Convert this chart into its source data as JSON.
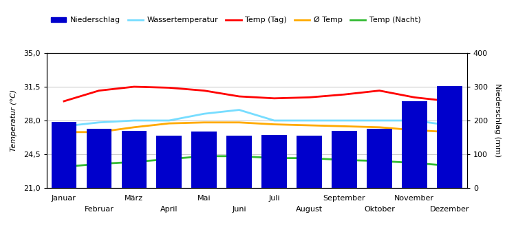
{
  "months": [
    "Januar",
    "Februar",
    "März",
    "April",
    "Mai",
    "Juni",
    "Juli",
    "August",
    "September",
    "Oktober",
    "November",
    "Dezember"
  ],
  "niederschlag": [
    196,
    175,
    170,
    155,
    168,
    155,
    158,
    155,
    170,
    175,
    257,
    303
  ],
  "temp_tag": [
    30.0,
    31.1,
    31.5,
    31.4,
    31.1,
    30.5,
    30.3,
    30.4,
    30.7,
    31.1,
    30.4,
    30.0
  ],
  "temp_nacht": [
    23.2,
    23.5,
    23.7,
    24.0,
    24.3,
    24.3,
    24.1,
    24.1,
    23.9,
    23.8,
    23.6,
    23.3
  ],
  "temp_avg": [
    26.8,
    26.8,
    27.3,
    27.7,
    27.8,
    27.8,
    27.6,
    27.5,
    27.4,
    27.3,
    27.0,
    26.8
  ],
  "wasser_temp": [
    27.4,
    27.8,
    28.0,
    28.0,
    28.7,
    29.1,
    28.0,
    28.0,
    28.0,
    28.0,
    28.0,
    27.5
  ],
  "temp_ylim": [
    21.0,
    35.0
  ],
  "temp_yticks": [
    21.0,
    24.5,
    28.0,
    31.5,
    35.0
  ],
  "precip_ylim": [
    0,
    400
  ],
  "precip_yticks": [
    0,
    100,
    200,
    300,
    400
  ],
  "bar_color": "#0000cc",
  "line_tag_color": "#ff0000",
  "line_nacht_color": "#33bb33",
  "line_avg_color": "#ffaa00",
  "line_wasser_color": "#77ddff",
  "ylabel_left": "Temperatur (°C)",
  "ylabel_right": "Niederschlag (mm)",
  "legend_labels": [
    "Niederschlag",
    "Wassertemperatur",
    "Temp (Tag)",
    "Ø Temp",
    "Temp (Nacht)"
  ],
  "background_color": "#ffffff",
  "grid_color": "#cccccc",
  "bar_width": 0.72
}
